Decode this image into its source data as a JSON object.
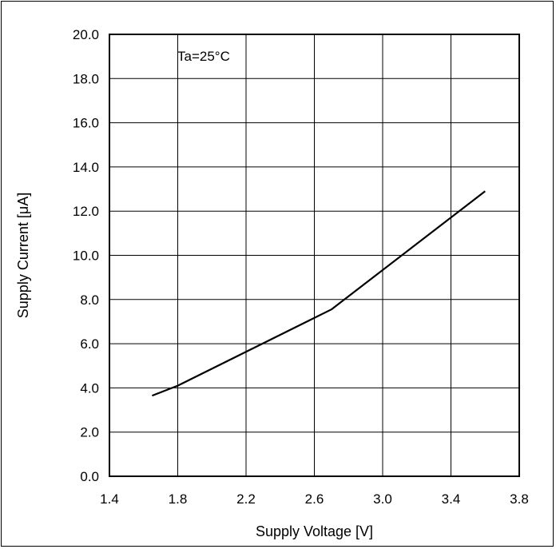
{
  "chart_data": {
    "type": "line",
    "title": "",
    "xlabel": "Supply Voltage [V]",
    "ylabel": "Supply Current [μA]",
    "xlim": [
      1.4,
      3.8
    ],
    "ylim": [
      0.0,
      20.0
    ],
    "x_ticks": [
      "1.4",
      "1.8",
      "2.2",
      "2.6",
      "3.0",
      "3.4",
      "3.8"
    ],
    "y_ticks": [
      "0.0",
      "2.0",
      "4.0",
      "6.0",
      "8.0",
      "10.0",
      "12.0",
      "14.0",
      "16.0",
      "18.0",
      "20.0"
    ],
    "grid": true,
    "annotation": "Ta=25°C",
    "series": [
      {
        "color": "#000000",
        "x": [
          1.65,
          1.8,
          2.7,
          3.6
        ],
        "y": [
          3.65,
          4.1,
          7.55,
          12.9
        ]
      }
    ]
  }
}
